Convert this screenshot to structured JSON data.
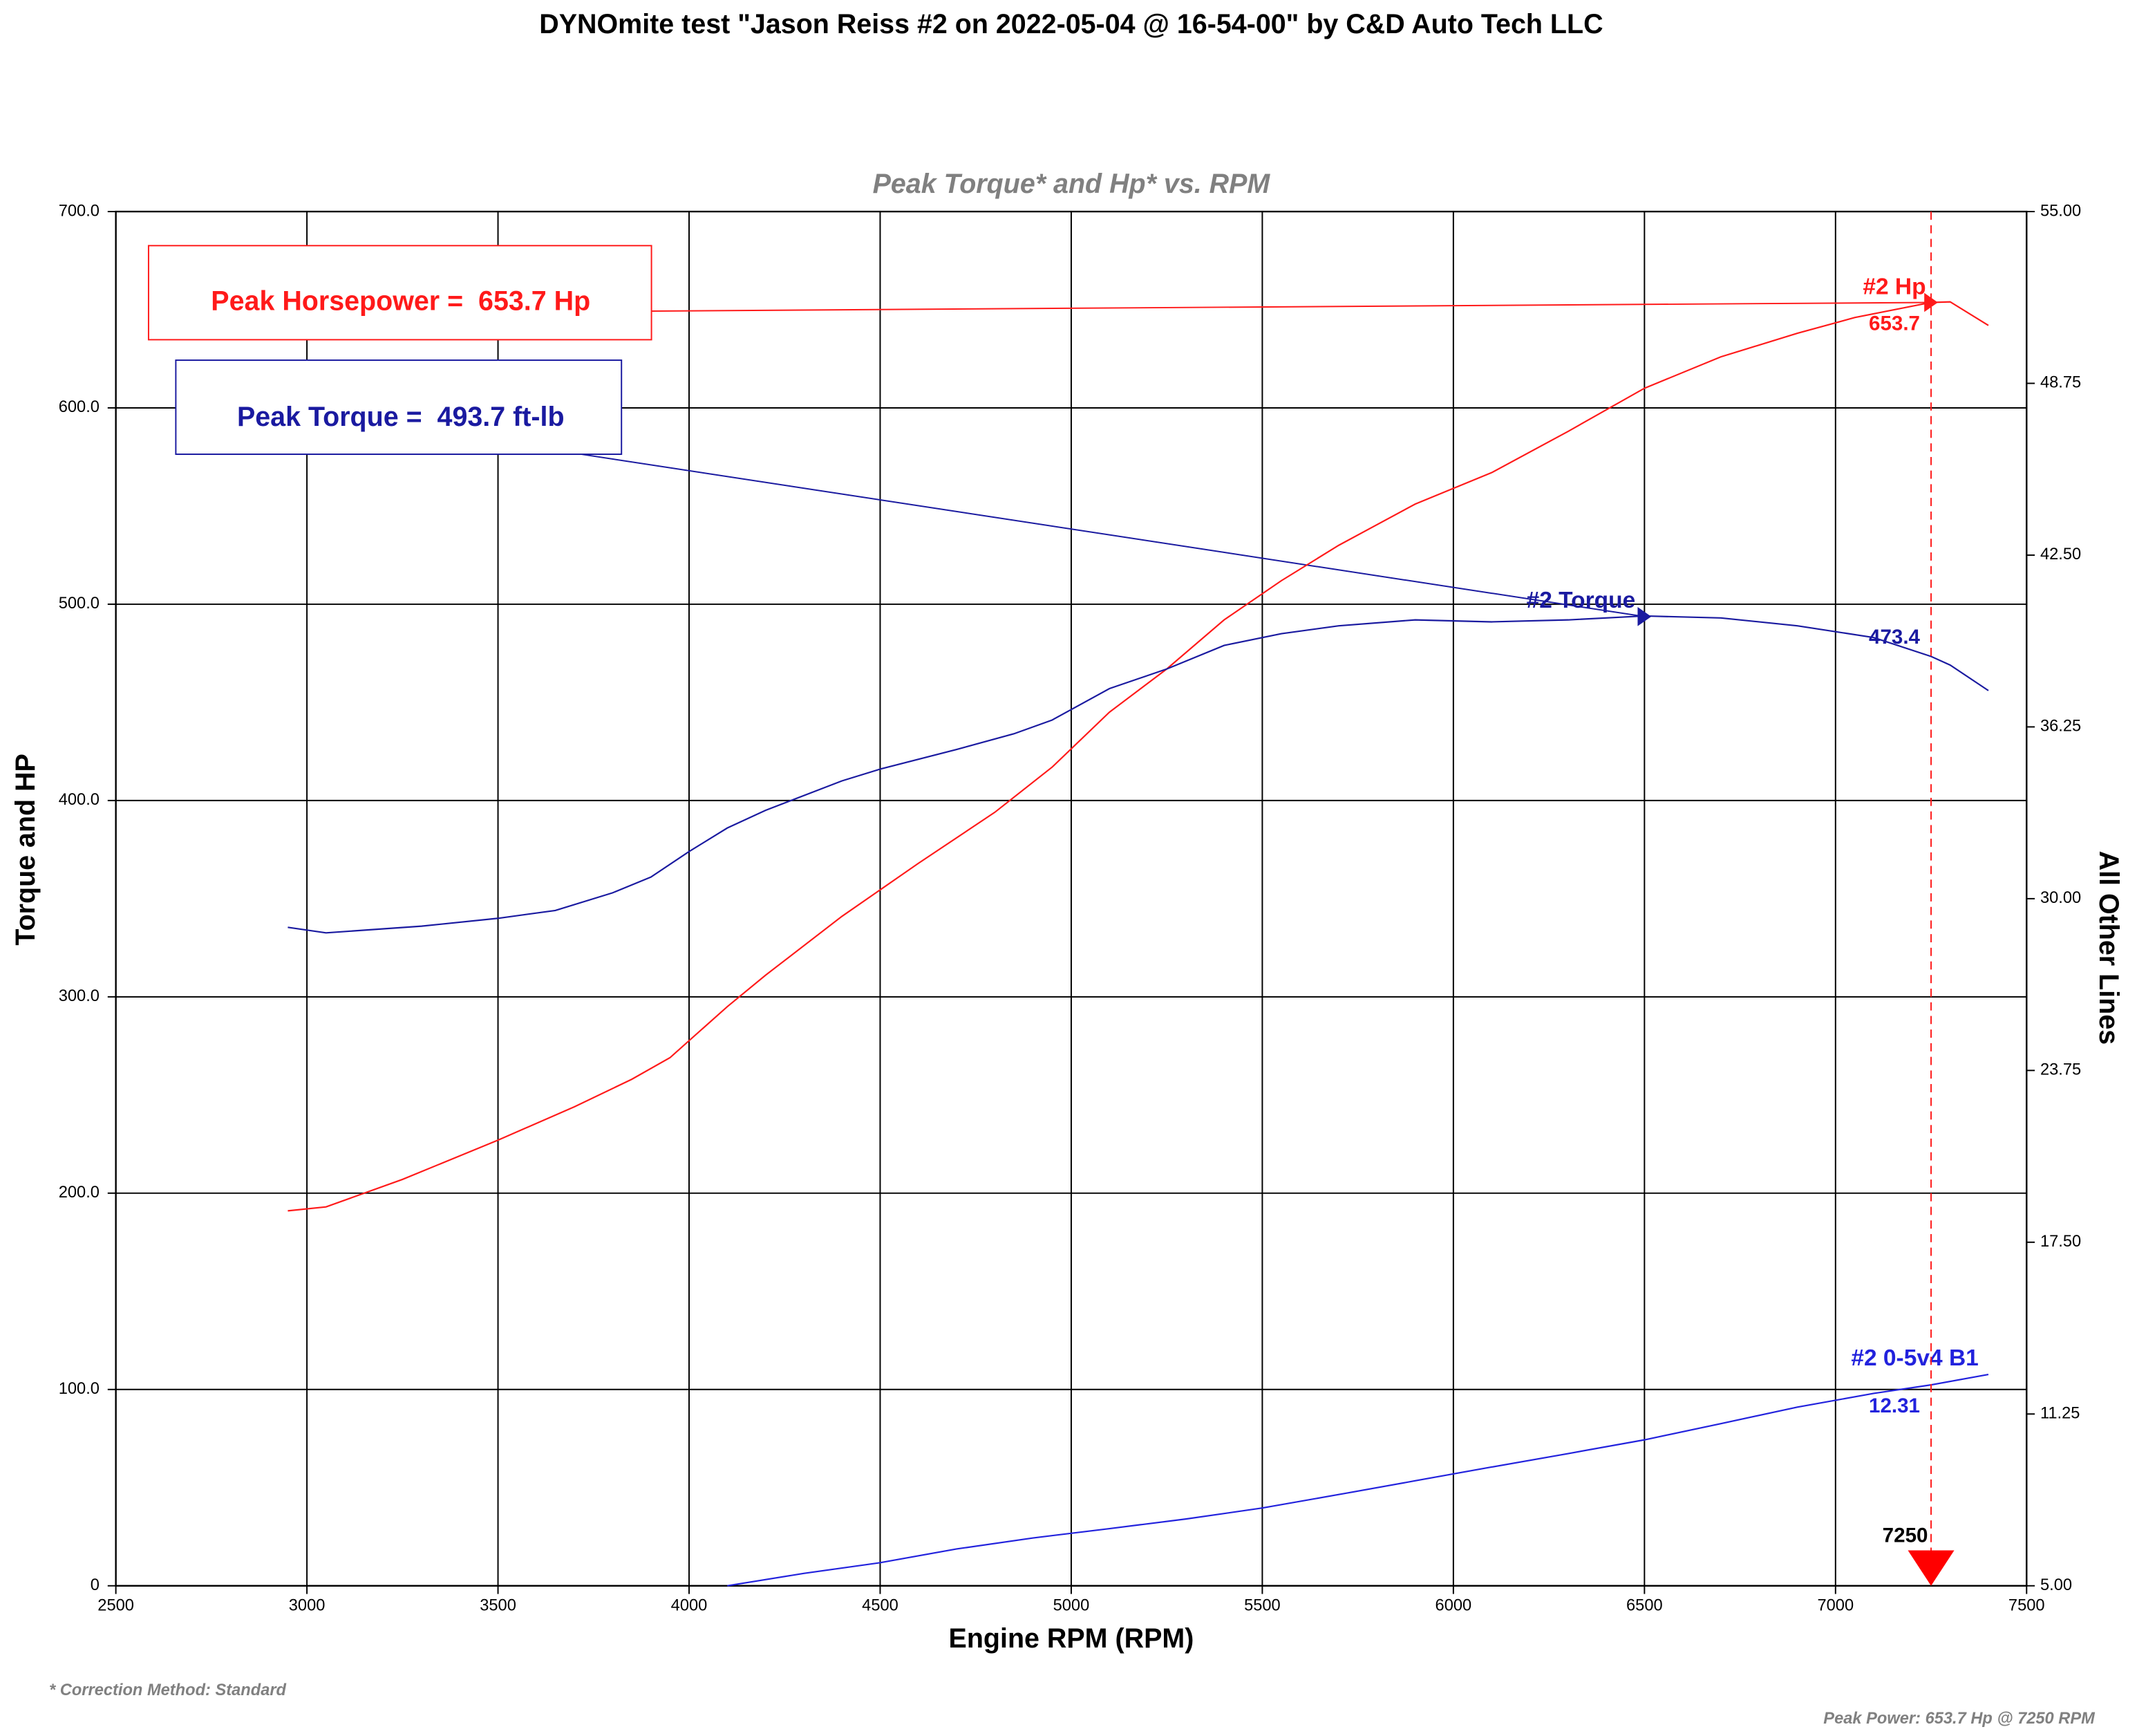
{
  "chart_data": {
    "type": "line",
    "title": "DYNOmite test \"Jason Reiss #2 on 2022-05-04 @ 16-54-00\" by C&D Auto Tech LLC",
    "subtitle": "Peak Torque* and Hp* vs. RPM",
    "xlabel": "Engine RPM (RPM)",
    "ylabel": "Torque and HP",
    "y2label": "All Other Lines",
    "xlim": [
      2500,
      7500
    ],
    "xticks": [
      2500,
      3000,
      3500,
      4000,
      4500,
      5000,
      5500,
      6000,
      6500,
      7000,
      7500
    ],
    "ylim": [
      0,
      700
    ],
    "yticks": [
      0,
      {
        "value": 100,
        "label": "100.0"
      },
      {
        "value": 200,
        "label": "200.0"
      },
      {
        "value": 300,
        "label": "300.0"
      },
      {
        "value": 400,
        "label": "400.0"
      },
      {
        "value": 500,
        "label": "500.0"
      },
      {
        "value": 600,
        "label": "600.0"
      },
      {
        "value": 700,
        "label": "700.0"
      }
    ],
    "y2lim": [
      5,
      55
    ],
    "y2ticks": [
      {
        "value": 5,
        "label": "5.00"
      },
      {
        "value": 11.25,
        "label": "11.25"
      },
      {
        "value": 17.5,
        "label": "17.50"
      },
      {
        "value": 23.75,
        "label": "23.75"
      },
      {
        "value": 30,
        "label": "30.00"
      },
      {
        "value": 36.25,
        "label": "36.25"
      },
      {
        "value": 42.5,
        "label": "42.50"
      },
      {
        "value": 48.75,
        "label": "48.75"
      },
      {
        "value": 55,
        "label": "55.00"
      }
    ],
    "grid": true,
    "cursor": 7250,
    "annotations": [
      "Peak Horsepower =  653.7 Hp",
      "Peak Torque =  493.7 ft-lb"
    ],
    "series": [
      {
        "name": "#2 Hp",
        "color": "#ff1a1a",
        "label_value": 653.7,
        "peak_x": 7250,
        "peak_value": 653.7,
        "x": [
          2950,
          3050,
          3250,
          3500,
          3700,
          3850,
          3950,
          4100,
          4200,
          4400,
          4600,
          4800,
          4950,
          5100,
          5250,
          5400,
          5550,
          5700,
          5900,
          6100,
          6300,
          6500,
          6700,
          6900,
          7050,
          7250,
          7300,
          7400
        ],
        "values": [
          191,
          193,
          207,
          227,
          244,
          258,
          269,
          295,
          311,
          341,
          368,
          394,
          417,
          445,
          467,
          492,
          512,
          530,
          551,
          567,
          588,
          610,
          626,
          638,
          646,
          653.7,
          654,
          642
        ]
      },
      {
        "name": "#2 Torque",
        "color": "#1a1aa0",
        "label_value": 473.4,
        "peak_x": 6500,
        "peak_value": 493.7,
        "x": [
          2950,
          3050,
          3300,
          3500,
          3650,
          3800,
          3900,
          4000,
          4100,
          4200,
          4400,
          4500,
          4700,
          4850,
          4950,
          5100,
          5250,
          5400,
          5550,
          5700,
          5900,
          6100,
          6300,
          6500,
          6700,
          6900,
          7100,
          7250,
          7300,
          7400
        ],
        "values": [
          335.4,
          332.6,
          336,
          340,
          344,
          353,
          361,
          374,
          386,
          395,
          410,
          416,
          426,
          434,
          441,
          457,
          467,
          479,
          485,
          489,
          492,
          491,
          492,
          494,
          493,
          489,
          483,
          473.4,
          469,
          456
        ]
      },
      {
        "name": "#2 0-5v4 B1",
        "color": "#2222dd",
        "axis": "y2",
        "label_value": 12.31,
        "x": [
          4100,
          4300,
          4500,
          4700,
          4900,
          5100,
          5300,
          5500,
          5700,
          5900,
          6100,
          6300,
          6500,
          6700,
          6900,
          7100,
          7250,
          7400
        ],
        "values": [
          5.0,
          5.45,
          5.84,
          6.34,
          6.74,
          7.08,
          7.43,
          7.83,
          8.32,
          8.82,
          9.32,
          9.81,
          10.31,
          10.9,
          11.5,
          12.0,
          12.31,
          12.69
        ]
      }
    ],
    "footnote_left": "* Correction Method: Standard",
    "footnote_right": "Peak Power: 653.7 Hp @ 7250 RPM"
  }
}
